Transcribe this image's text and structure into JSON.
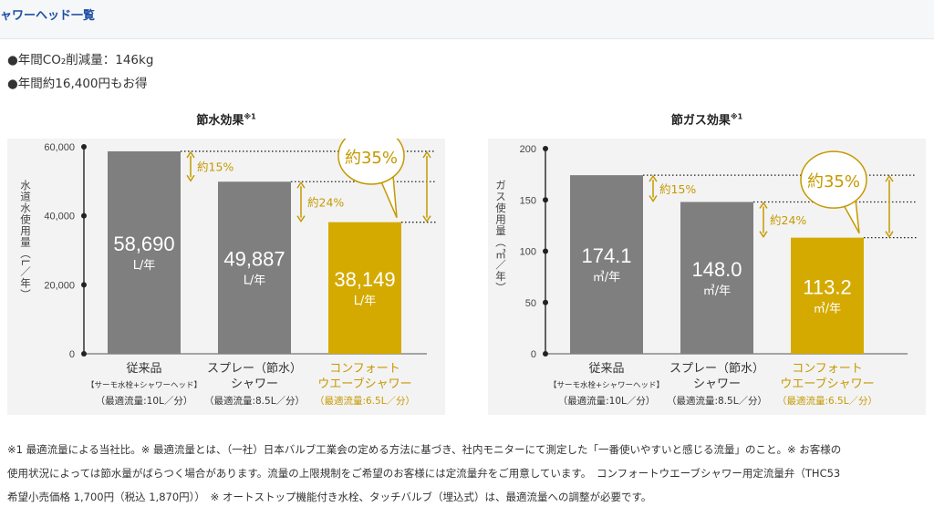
{
  "header": {
    "title": "ャワーヘッド一覧"
  },
  "bullets": [
    "●年間CO₂削減量：146kg",
    "●年間約16,400円もお得"
  ],
  "chart_data": [
    {
      "type": "bar",
      "title": "節水効果",
      "title_note": "※1",
      "ylabel": "水道水使用量（L／年）",
      "ylim": [
        0,
        60000
      ],
      "yticks": [
        "60,000",
        "40,000",
        "20,000",
        "0"
      ],
      "ytick_values": [
        60000,
        40000,
        20000,
        0
      ],
      "categories": [
        {
          "label": "従来品",
          "sub": "【サーモ水栓+シャワーヘッド】",
          "flow": "（最適流量:10L／分）"
        },
        {
          "label": "スプレー（節水）",
          "label2": "シャワー",
          "flow": "（最適流量:8.5L／分）"
        },
        {
          "label": "コンフォート",
          "label2": "ウエーブシャワー",
          "flow": "（最適流量:6.5L／分）"
        }
      ],
      "values": [
        58690,
        49887,
        38149
      ],
      "value_labels": [
        "58,690",
        "49,887",
        "38,149"
      ],
      "unit_label": "L/年",
      "annotations": [
        "約15%",
        "約24%",
        "約35%"
      ],
      "colors": [
        "#7f7f7f",
        "#7f7f7f",
        "#d4aa00"
      ]
    },
    {
      "type": "bar",
      "title": "節ガス効果",
      "title_note": "※1",
      "ylabel": "ガス使用量（㎥／年）",
      "ylim": [
        0,
        200
      ],
      "yticks": [
        "200",
        "150",
        "100",
        "50",
        "0"
      ],
      "ytick_values": [
        200,
        150,
        100,
        50,
        0
      ],
      "categories": [
        {
          "label": "従来品",
          "sub": "【サーモ水栓+シャワーヘッド】",
          "flow": "（最適流量:10L／分）"
        },
        {
          "label": "スプレー（節水）",
          "label2": "シャワー",
          "flow": "（最適流量:8.5L／分）"
        },
        {
          "label": "コンフォート",
          "label2": "ウエーブシャワー",
          "flow": "（最適流量:6.5L／分）"
        }
      ],
      "values": [
        174.1,
        148.0,
        113.2
      ],
      "value_labels": [
        "174.1",
        "148.0",
        "113.2"
      ],
      "unit_label": "㎥/年",
      "annotations": [
        "約15%",
        "約24%",
        "約35%"
      ],
      "colors": [
        "#7f7f7f",
        "#7f7f7f",
        "#d4aa00"
      ]
    }
  ],
  "footnotes": [
    "※1 最適流量による当社比。※ 最適流量とは、（一社）日本バルブ工業会の定める方法に基づき、社内モニターにて測定した「一番使いやすいと感じる流量」のこと。※ お客様の",
    "使用状況によっては節水量がばらつく場合があります。流量の上限規制をご希望のお客様には定流量弁をご用意しています。　コンフォートウエーブシャワー用定流量弁（THC53",
    "希望小売価格 1,700円（税込 1,870円））　※ オートストップ機能付き水栓、タッチバルブ（埋込式）は、最適流量への調整が必要です。"
  ]
}
